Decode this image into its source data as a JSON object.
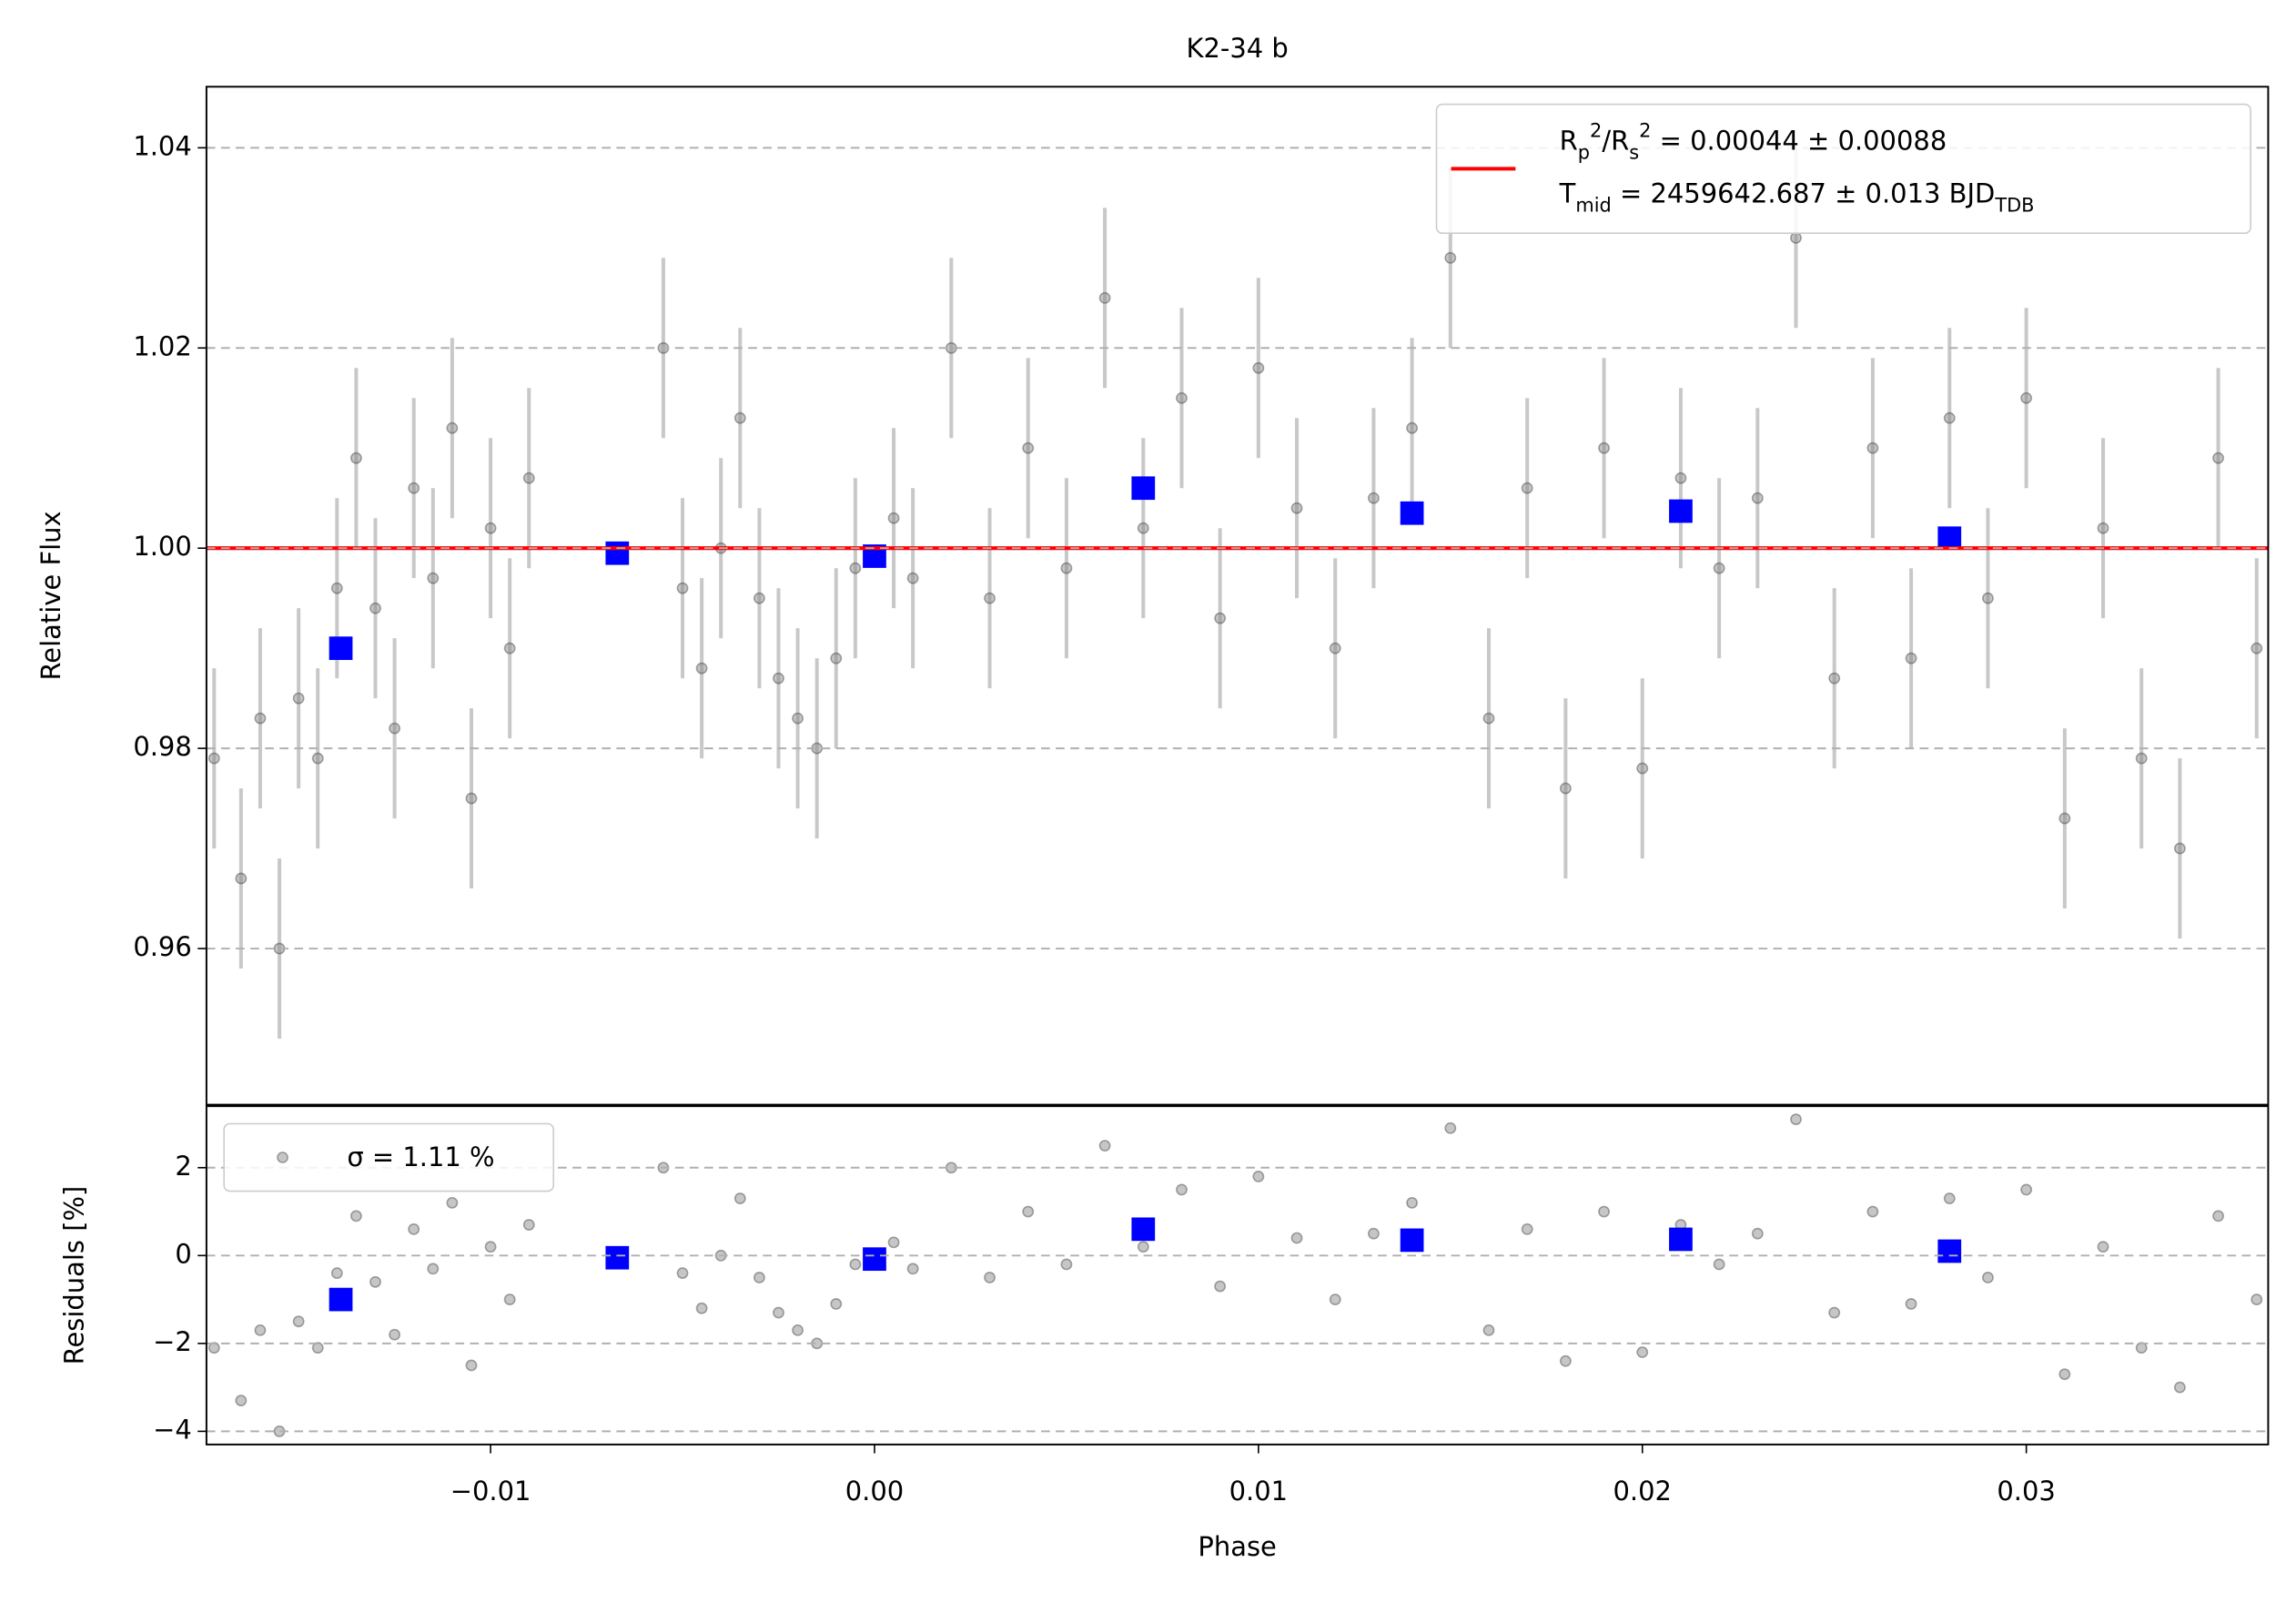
{
  "chart_data": [
    {
      "type": "scatter",
      "title": "K2-34 b",
      "ylabel": "Relative Flux",
      "xlim": [
        -0.0174,
        0.0363
      ],
      "ylim": [
        0.9444,
        1.0461
      ],
      "yticks": [
        0.96,
        0.98,
        {
          "value": 1.0,
          "label": "1.00"
        },
        1.02,
        1.04
      ],
      "grid": true,
      "legend_loc": "upper right",
      "legend_text": [
        "R_{p}^{2}/R_{s}^{2} = 0.00044 ± 0.00088",
        "T_{mid} = 2459642.687 ± 0.013 BJD_{TDB}"
      ],
      "series": [
        {
          "color": "#808080",
          "error": 0.009,
          "x": [
            -0.0172,
            -0.0165,
            -0.016,
            -0.0155,
            -0.015,
            -0.0145,
            -0.014,
            -0.0135,
            -0.013,
            -0.0125,
            -0.012,
            -0.0115,
            -0.011,
            -0.0105,
            -0.01,
            -0.0095,
            -0.009,
            -0.0055,
            -0.005,
            -0.0045,
            -0.004,
            -0.0035,
            -0.003,
            -0.0025,
            -0.002,
            -0.0015,
            -0.001,
            -0.0005,
            0.0005,
            0.001,
            0.002,
            0.003,
            0.004,
            0.005,
            0.006,
            0.007,
            0.008,
            0.009,
            0.01,
            0.011,
            0.012,
            0.013,
            0.014,
            0.015,
            0.016,
            0.017,
            0.018,
            0.019,
            0.02,
            0.021,
            0.022,
            0.023,
            0.024,
            0.025,
            0.026,
            0.027,
            0.028,
            0.029,
            0.03,
            0.031,
            0.032,
            0.033,
            0.034,
            0.035,
            0.036
          ],
          "values": [
            0.979,
            0.967,
            0.983,
            0.96,
            0.985,
            0.979,
            0.996,
            1.009,
            0.994,
            0.982,
            1.006,
            0.997,
            1.012,
            0.975,
            1.002,
            0.99,
            1.007,
            1.02,
            0.996,
            0.988,
            1.0,
            1.013,
            0.995,
            0.987,
            0.983,
            0.98,
            0.989,
            0.998,
            1.003,
            0.997,
            1.02,
            0.995,
            1.01,
            0.998,
            1.025,
            1.002,
            1.015,
            0.993,
            1.018,
            1.004,
            0.99,
            1.005,
            1.012,
            1.029,
            0.983,
            1.006,
            0.976,
            1.01,
            0.978,
            1.007,
            0.998,
            1.005,
            1.031,
            0.987,
            1.01,
            0.989,
            1.013,
            0.995,
            1.015,
            0.973,
            1.002,
            0.979,
            0.97,
            1.009,
            0.99
          ]
        },
        {
          "color": "#0000ff",
          "marker": "square",
          "x": [
            -0.0139,
            -0.0067,
            0.0,
            0.007,
            0.014,
            0.021,
            0.028
          ],
          "values": [
            0.99,
            0.9995,
            0.9992,
            1.006,
            1.0035,
            1.0037,
            1.001
          ]
        },
        {
          "color": "#ff0000",
          "marker": "line",
          "x": [
            -0.0174,
            0.0363
          ],
          "values": [
            1.0,
            1.0
          ]
        }
      ]
    },
    {
      "type": "scatter",
      "xlabel": "Phase",
      "ylabel": "Residuals [%]",
      "xlim": [
        -0.0174,
        0.0363
      ],
      "ylim": [
        -4.3,
        3.4
      ],
      "xticks": [
        {
          "value": -0.01,
          "label": "−0.01"
        },
        {
          "value": 0,
          "label": "0.00"
        },
        0.01,
        0.02,
        0.03
      ],
      "yticks": [
        {
          "value": -4,
          "label": "−4"
        },
        {
          "value": -2,
          "label": "−2"
        },
        0,
        2
      ],
      "grid": true,
      "legend_loc": "upper left",
      "series": [
        {
          "name": "σ = 1.11 %",
          "color": "#808080",
          "x": [
            -0.0172,
            -0.0165,
            -0.016,
            -0.0155,
            -0.015,
            -0.0145,
            -0.014,
            -0.0135,
            -0.013,
            -0.0125,
            -0.012,
            -0.0115,
            -0.011,
            -0.0105,
            -0.01,
            -0.0095,
            -0.009,
            -0.0055,
            -0.005,
            -0.0045,
            -0.004,
            -0.0035,
            -0.003,
            -0.0025,
            -0.002,
            -0.0015,
            -0.001,
            -0.0005,
            0.0005,
            0.001,
            0.002,
            0.003,
            0.004,
            0.005,
            0.006,
            0.007,
            0.008,
            0.009,
            0.01,
            0.011,
            0.012,
            0.013,
            0.014,
            0.015,
            0.016,
            0.017,
            0.018,
            0.019,
            0.02,
            0.021,
            0.022,
            0.023,
            0.024,
            0.025,
            0.026,
            0.027,
            0.028,
            0.029,
            0.03,
            0.031,
            0.032,
            0.033,
            0.034,
            0.035,
            0.036
          ],
          "values": [
            -2.1,
            -3.3,
            -1.7,
            -4.0,
            -1.5,
            -2.1,
            -0.4,
            0.9,
            -0.6,
            -1.8,
            0.6,
            -0.3,
            1.2,
            -2.5,
            0.2,
            -1.0,
            0.7,
            2.0,
            -0.4,
            -1.2,
            0.0,
            1.3,
            -0.5,
            -1.3,
            -1.7,
            -2.0,
            -1.1,
            -0.2,
            0.3,
            -0.3,
            2.0,
            -0.5,
            1.0,
            -0.2,
            2.5,
            0.2,
            1.5,
            -0.7,
            1.8,
            0.4,
            -1.0,
            0.5,
            1.2,
            2.9,
            -1.7,
            0.6,
            -2.4,
            1.0,
            -2.2,
            0.7,
            -0.2,
            0.5,
            3.1,
            -1.3,
            1.0,
            -1.1,
            1.3,
            -0.5,
            1.5,
            -2.7,
            0.2,
            -2.1,
            -3.0,
            0.9,
            -1.0
          ]
        },
        {
          "color": "#0000ff",
          "marker": "square",
          "x": [
            -0.0139,
            -0.0067,
            0.0,
            0.007,
            0.014,
            0.021,
            0.028
          ],
          "values": [
            -1.0,
            -0.05,
            -0.08,
            0.6,
            0.35,
            0.37,
            0.1
          ]
        }
      ]
    }
  ]
}
